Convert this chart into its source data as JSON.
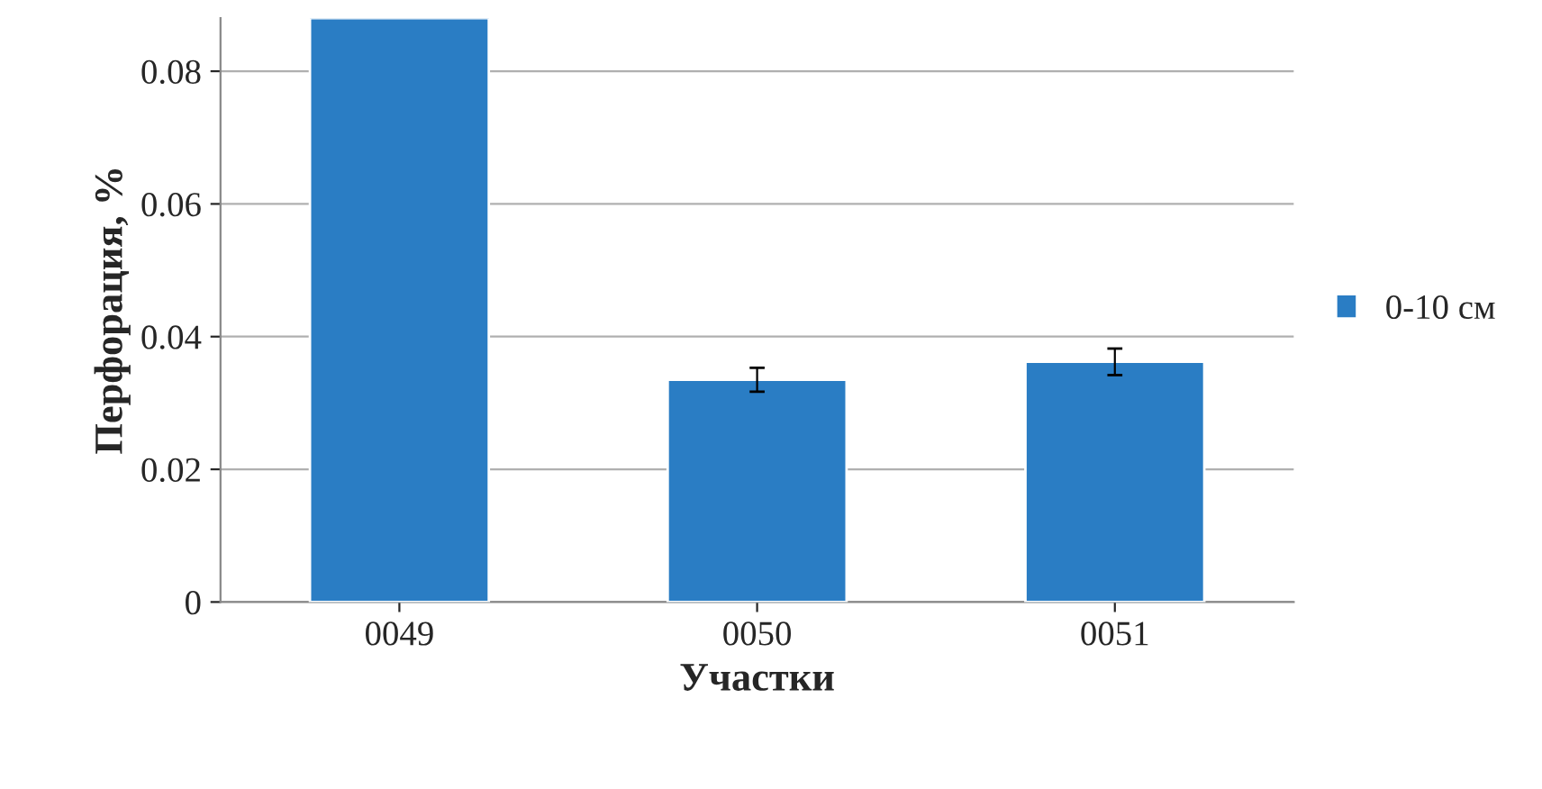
{
  "chart_data": {
    "type": "bar",
    "xlabel": "Участки",
    "ylabel": "Перфорация, %",
    "categories": [
      "0049",
      "0050",
      "0051"
    ],
    "series": [
      {
        "name": "0-10 см",
        "color": "#2a7dc4",
        "values": [
          0.088,
          0.0335,
          0.0362
        ],
        "errors": [
          null,
          0.0018,
          0.002
        ]
      }
    ],
    "ylim": [
      0,
      0.088
    ],
    "yticks": [
      "0",
      0.02,
      0.04,
      0.06,
      0.08
    ],
    "grid": "y",
    "legend": "right"
  }
}
